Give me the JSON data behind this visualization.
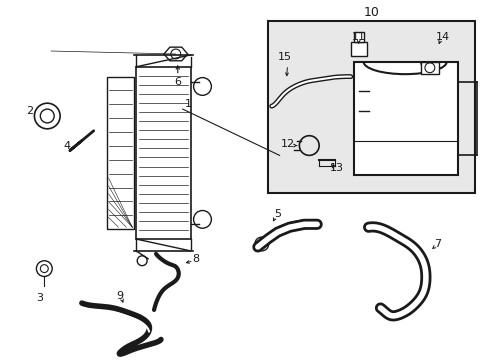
{
  "bg_color": "#ffffff",
  "line_color": "#1a1a1a",
  "box_bg": "#e8e8e8",
  "figsize": [
    4.89,
    3.6
  ],
  "dpi": 100
}
